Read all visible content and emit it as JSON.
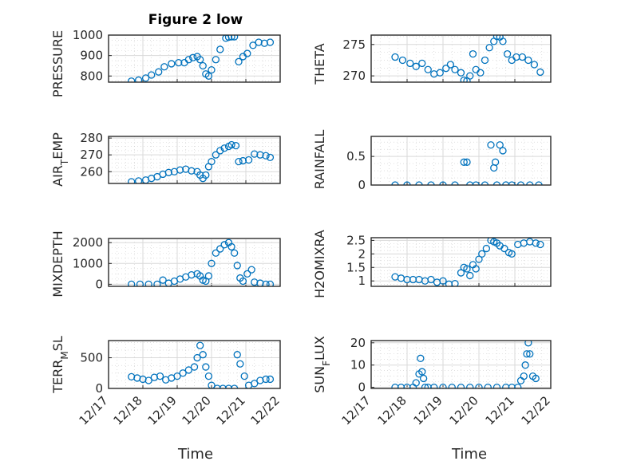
{
  "figure": {
    "title": "Figure 2 low",
    "marker_color": "#0072bd",
    "x_tick_labels": [
      "12/17",
      "12/18",
      "12/19",
      "12/20",
      "12/21",
      "12/22"
    ],
    "x_label": "Time"
  },
  "chart_data": [
    {
      "type": "scatter",
      "panel": "PRESSURE",
      "title": "Figure 2 low",
      "ylabel": "PRESSURE",
      "xlabel": "",
      "ylim": [
        770,
        1000
      ],
      "xlim": [
        "12/17",
        "12/22"
      ],
      "grid": true,
      "yticks": [
        800,
        900,
        1000
      ],
      "ytick_labels": [
        "800",
        "900",
        "1000"
      ],
      "x": [
        "12/17 16:00",
        "12/17 21:00",
        "12/18 02:00",
        "12/18 06:00",
        "12/18 11:00",
        "12/18 15:00",
        "12/18 20:00",
        "12/19 01:00",
        "12/19 05:00",
        "12/19 08:00",
        "12/19 11:00",
        "12/19 14:00",
        "12/19 16:00",
        "12/19 18:00",
        "12/19 20:00",
        "12/19 22:00",
        "12/20 00:00",
        "12/20 03:00",
        "12/20 06:00",
        "12/20 10:00",
        "12/20 12:00",
        "12/20 14:00",
        "12/20 16:00",
        "12/20 19:00",
        "12/20 22:00",
        "12/21 01:00",
        "12/21 05:00",
        "12/21 09:00",
        "12/21 13:00",
        "12/21 17:00"
      ],
      "y": [
        775,
        780,
        790,
        805,
        820,
        845,
        860,
        865,
        865,
        880,
        890,
        895,
        880,
        850,
        810,
        800,
        830,
        880,
        930,
        985,
        990,
        992,
        992,
        870,
        895,
        910,
        950,
        965,
        960,
        965
      ]
    },
    {
      "type": "scatter",
      "panel": "THETA",
      "ylabel": "THETA",
      "xlabel": "",
      "ylim": [
        269,
        276.5
      ],
      "xlim": [
        "12/17",
        "12/22"
      ],
      "grid": true,
      "yticks": [
        270,
        275
      ],
      "ytick_labels": [
        "270",
        "275"
      ],
      "x": [
        "12/17 16:00",
        "12/17 21:00",
        "12/18 02:00",
        "12/18 06:00",
        "12/18 10:00",
        "12/18 14:00",
        "12/18 18:00",
        "12/18 22:00",
        "12/19 02:00",
        "12/19 05:00",
        "12/19 08:00",
        "12/19 12:00",
        "12/19 14:00",
        "12/19 16:00",
        "12/19 18:00",
        "12/19 20:00",
        "12/19 22:00",
        "12/20 01:00",
        "12/20 04:00",
        "12/20 07:00",
        "12/20 10:00",
        "12/20 12:00",
        "12/20 14:00",
        "12/20 16:00",
        "12/20 19:00",
        "12/20 22:00",
        "12/21 01:00",
        "12/21 05:00",
        "12/21 09:00",
        "12/21 13:00",
        "12/21 17:00"
      ],
      "y": [
        273,
        272.5,
        272,
        271.5,
        272,
        271,
        270.3,
        270.5,
        271.2,
        271.8,
        271,
        270.5,
        269.3,
        269.2,
        270,
        273.5,
        271,
        270.5,
        272.5,
        274.5,
        275.5,
        276.3,
        276.2,
        275.5,
        273.5,
        272.5,
        273,
        273,
        272.5,
        271.8,
        270.6
      ]
    },
    {
      "type": "scatter",
      "panel": "AIR_TEMP",
      "ylabel": "AIR_TEMP",
      "xlabel": "",
      "ylim": [
        253,
        281
      ],
      "xlim": [
        "12/17",
        "12/22"
      ],
      "grid": true,
      "yticks": [
        260,
        270,
        280
      ],
      "ytick_labels": [
        "260",
        "270",
        "280"
      ],
      "x": [
        "12/17 16:00",
        "12/17 21:00",
        "12/18 02:00",
        "12/18 06:00",
        "12/18 10:00",
        "12/18 14:00",
        "12/18 18:00",
        "12/18 22:00",
        "12/19 02:00",
        "12/19 06:00",
        "12/19 10:00",
        "12/19 14:00",
        "12/19 16:00",
        "12/19 18:00",
        "12/19 20:00",
        "12/19 22:00",
        "12/20 00:00",
        "12/20 03:00",
        "12/20 06:00",
        "12/20 09:00",
        "12/20 12:00",
        "12/20 14:00",
        "12/20 17:00",
        "12/20 19:00",
        "12/20 22:00",
        "12/21 02:00",
        "12/21 06:00",
        "12/21 10:00",
        "12/21 14:00",
        "12/21 17:00"
      ],
      "y": [
        254,
        254.5,
        255,
        256,
        257,
        258.5,
        259.5,
        260,
        261,
        261.5,
        260.5,
        260,
        258,
        256,
        258,
        263,
        266,
        270,
        272.5,
        274,
        275,
        276,
        275.5,
        266,
        266.5,
        267,
        270.5,
        270,
        269.5,
        268.5
      ]
    },
    {
      "type": "scatter",
      "panel": "RAINFALL",
      "ylabel": "RAINFALL",
      "xlabel": "",
      "ylim": [
        0,
        0.85
      ],
      "xlim": [
        "12/17",
        "12/22"
      ],
      "grid": true,
      "yticks": [
        0,
        0.5
      ],
      "ytick_labels": [
        "0",
        "0.5"
      ],
      "x": [
        "12/17 16:00",
        "12/18 00:00",
        "12/18 08:00",
        "12/18 16:00",
        "12/19 00:00",
        "12/19 08:00",
        "12/19 14:00",
        "12/19 16:00",
        "12/19 18:00",
        "12/19 22:00",
        "12/20 04:00",
        "12/20 08:00",
        "12/20 10:00",
        "12/20 11:00",
        "12/20 12:00",
        "12/20 14:00",
        "12/20 16:00",
        "12/20 18:00",
        "12/20 22:00",
        "12/21 04:00",
        "12/21 10:00",
        "12/21 16:00"
      ],
      "y": [
        0,
        0,
        0,
        0,
        0,
        0,
        0.4,
        0.4,
        0,
        0,
        0,
        0.7,
        0.3,
        0.4,
        0,
        0.7,
        0.6,
        0,
        0,
        0,
        0,
        0
      ]
    },
    {
      "type": "scatter",
      "panel": "MIXDEPTH",
      "ylabel": "MIXDEPTH",
      "xlabel": "",
      "ylim": [
        -100,
        2200
      ],
      "xlim": [
        "12/17",
        "12/22"
      ],
      "grid": true,
      "yticks": [
        0,
        1000,
        2000
      ],
      "ytick_labels": [
        "0",
        "1000",
        "2000"
      ],
      "x": [
        "12/17 16:00",
        "12/17 22:00",
        "12/18 04:00",
        "12/18 10:00",
        "12/18 14:00",
        "12/18 18:00",
        "12/18 22:00",
        "12/19 02:00",
        "12/19 06:00",
        "12/19 10:00",
        "12/19 14:00",
        "12/19 16:00",
        "12/19 18:00",
        "12/19 20:00",
        "12/19 22:00",
        "12/20 00:00",
        "12/20 03:00",
        "12/20 06:00",
        "12/20 09:00",
        "12/20 12:00",
        "12/20 14:00",
        "12/20 16:00",
        "12/20 18:00",
        "12/20 20:00",
        "12/20 22:00",
        "12/21 01:00",
        "12/21 04:00",
        "12/21 06:00",
        "12/21 10:00",
        "12/21 14:00",
        "12/21 17:00"
      ],
      "y": [
        0,
        0,
        0,
        0,
        200,
        50,
        150,
        250,
        350,
        450,
        500,
        400,
        200,
        150,
        400,
        1000,
        1500,
        1700,
        1900,
        2000,
        1800,
        1500,
        900,
        300,
        150,
        500,
        700,
        100,
        50,
        0,
        0
      ]
    },
    {
      "type": "scatter",
      "panel": "H2OMIXRA",
      "ylabel": "H2OMIXRA",
      "xlabel": "",
      "ylim": [
        0.8,
        2.6
      ],
      "xlim": [
        "12/17",
        "12/22"
      ],
      "grid": true,
      "yticks": [
        1,
        1.5,
        2,
        2.5
      ],
      "ytick_labels": [
        "1",
        "1.5",
        "2",
        "2.5"
      ],
      "x": [
        "12/17 16:00",
        "12/17 20:00",
        "12/18 00:00",
        "12/18 04:00",
        "12/18 08:00",
        "12/18 12:00",
        "12/18 16:00",
        "12/18 20:00",
        "12/19 00:00",
        "12/19 04:00",
        "12/19 08:00",
        "12/19 12:00",
        "12/19 14:00",
        "12/19 16:00",
        "12/19 18:00",
        "12/19 20:00",
        "12/19 22:00",
        "12/20 00:00",
        "12/20 02:00",
        "12/20 05:00",
        "12/20 08:00",
        "12/20 10:00",
        "12/20 12:00",
        "12/20 14:00",
        "12/20 17:00",
        "12/20 20:00",
        "12/20 22:00",
        "12/21 02:00",
        "12/21 06:00",
        "12/21 10:00",
        "12/21 14:00",
        "12/21 17:00"
      ],
      "y": [
        1.15,
        1.1,
        1.05,
        1.05,
        1.05,
        1.0,
        1.05,
        0.95,
        1.0,
        0.88,
        0.9,
        1.3,
        1.5,
        1.45,
        1.2,
        1.6,
        1.45,
        1.8,
        2.0,
        2.2,
        2.5,
        2.45,
        2.4,
        2.3,
        2.2,
        2.05,
        2.0,
        2.35,
        2.4,
        2.45,
        2.4,
        2.35
      ]
    },
    {
      "type": "scatter",
      "panel": "TERR_MSL",
      "ylabel": "TERR_MSL",
      "xlabel": "Time",
      "ylim": [
        0,
        780
      ],
      "xlim": [
        "12/17",
        "12/22"
      ],
      "grid": true,
      "yticks": [
        0,
        500
      ],
      "ytick_labels": [
        "0",
        "500"
      ],
      "x_tick_labels": [
        "12/17",
        "12/18",
        "12/19",
        "12/20",
        "12/21",
        "12/22"
      ],
      "x": [
        "12/17 16:00",
        "12/17 20:00",
        "12/18 00:00",
        "12/18 04:00",
        "12/18 08:00",
        "12/18 12:00",
        "12/18 16:00",
        "12/18 20:00",
        "12/19 00:00",
        "12/19 04:00",
        "12/19 08:00",
        "12/19 12:00",
        "12/19 14:00",
        "12/19 16:00",
        "12/19 18:00",
        "12/19 20:00",
        "12/19 22:00",
        "12/20 00:00",
        "12/20 04:00",
        "12/20 08:00",
        "12/20 12:00",
        "12/20 16:00",
        "12/20 18:00",
        "12/20 20:00",
        "12/20 23:00",
        "12/21 02:00",
        "12/21 06:00",
        "12/21 10:00",
        "12/21 14:00",
        "12/21 17:00"
      ],
      "y": [
        190,
        170,
        150,
        130,
        180,
        200,
        140,
        170,
        200,
        250,
        300,
        350,
        500,
        700,
        550,
        350,
        200,
        50,
        0,
        0,
        0,
        0,
        550,
        400,
        200,
        50,
        80,
        130,
        150,
        150
      ]
    },
    {
      "type": "scatter",
      "panel": "SUN_FLUX",
      "ylabel": "SUN_FLUX",
      "xlabel": "Time",
      "ylim": [
        -0.5,
        21
      ],
      "xlim": [
        "12/17",
        "12/22"
      ],
      "grid": true,
      "yticks": [
        0,
        10,
        20
      ],
      "ytick_labels": [
        "0",
        "10",
        "20"
      ],
      "x_tick_labels": [
        "12/17",
        "12/18",
        "12/19",
        "12/20",
        "12/21",
        "12/22"
      ],
      "x": [
        "12/17 16:00",
        "12/17 20:00",
        "12/18 00:00",
        "12/18 04:00",
        "12/18 06:00",
        "12/18 08:00",
        "12/18 09:00",
        "12/18 10:00",
        "12/18 11:00",
        "12/18 12:00",
        "12/18 14:00",
        "12/18 18:00",
        "12/19 00:00",
        "12/19 06:00",
        "12/19 12:00",
        "12/19 18:00",
        "12/20 00:00",
        "12/20 06:00",
        "12/20 12:00",
        "12/20 18:00",
        "12/20 22:00",
        "12/21 02:00",
        "12/21 04:00",
        "12/21 06:00",
        "12/21 07:00",
        "12/21 08:00",
        "12/21 09:00",
        "12/21 10:00",
        "12/21 12:00",
        "12/21 14:00"
      ],
      "y": [
        0,
        0,
        0,
        0,
        2,
        6,
        13,
        7,
        4,
        0,
        0,
        0,
        0,
        0,
        0,
        0,
        0,
        0,
        0,
        0,
        0,
        0,
        3,
        5,
        10,
        15,
        20,
        15,
        5,
        4
      ]
    }
  ],
  "panels": {
    "pressure": {
      "ylabel": "PRESSURE",
      "ticks": [
        "800",
        "900",
        "1000"
      ]
    },
    "theta": {
      "ylabel": "THETA",
      "ticks": [
        "270",
        "275"
      ]
    },
    "air_temp": {
      "ylabel_main": "AIR",
      "ylabel_sub": "T",
      "ylabel_rest": "EMP",
      "ticks": [
        "260",
        "270",
        "280"
      ]
    },
    "rainfall": {
      "ylabel": "RAINFALL",
      "ticks": [
        "0",
        "0.5"
      ]
    },
    "mixdepth": {
      "ylabel": "MIXDEPTH",
      "ticks": [
        "0",
        "1000",
        "2000"
      ]
    },
    "h2omixra": {
      "ylabel": "H2OMIXRA",
      "ticks": [
        "1",
        "1.5",
        "2",
        "2.5"
      ]
    },
    "terr_msl": {
      "ylabel_main": "TERR",
      "ylabel_sub": "M",
      "ylabel_rest": "SL",
      "ticks": [
        "0",
        "500"
      ]
    },
    "sun_flux": {
      "ylabel_main": "SUN",
      "ylabel_sub": "F",
      "ylabel_rest": "LUX",
      "ticks": [
        "0",
        "10",
        "20"
      ]
    }
  }
}
